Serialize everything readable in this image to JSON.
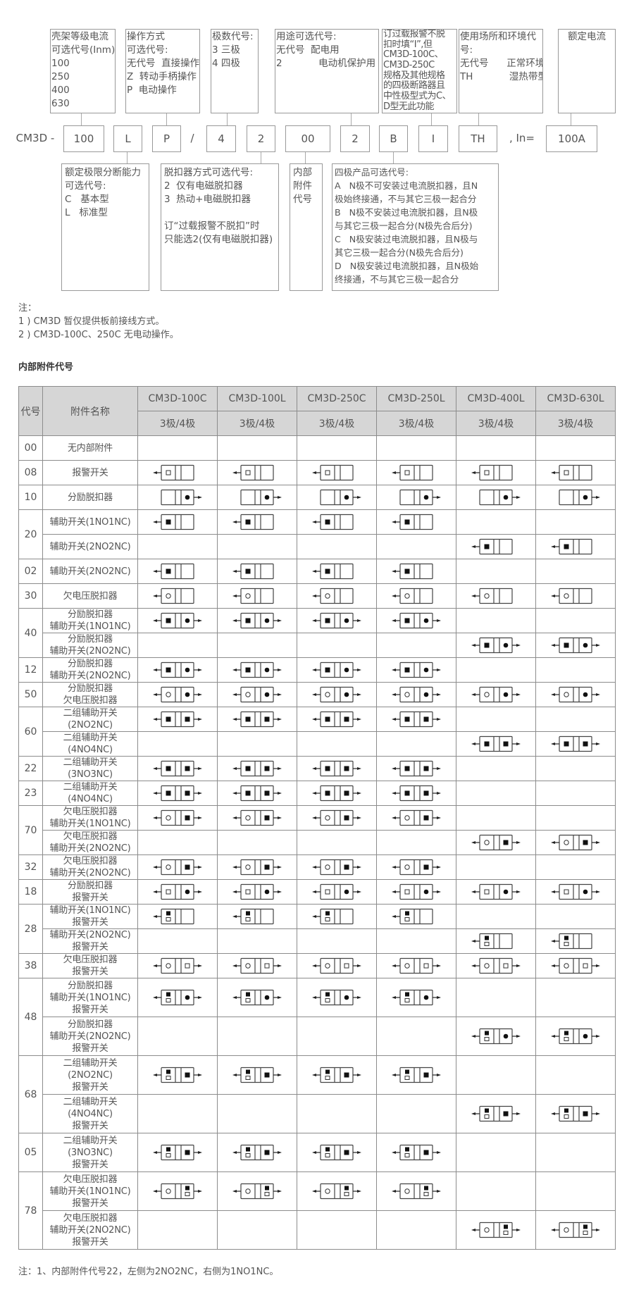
{
  "diagram": {
    "top_boxes": [
      {
        "lines": [
          "壳架等级电流",
          "可选代号(Inm):",
          "100",
          "250",
          "400",
          "630"
        ]
      },
      {
        "lines": [
          "操作方式",
          "可选代号:",
          "无代号  直接操作",
          "Z  转动手柄操作",
          "P  电动操作"
        ]
      },
      {
        "lines": [
          "极数代号:",
          "3 三极",
          "4 四极"
        ]
      },
      {
        "lines": [
          "用途可选代号:",
          "无代号  配电用",
          "2            电动机保护用"
        ]
      },
      {
        "lines": [
          "订过载报警不脱",
          "扣时填“I”,但",
          "CM3D-100C、",
          "CM3D-250C",
          "规格及其他规格",
          "的四极断路器且",
          "中性极型式为C、",
          "D型无此功能"
        ]
      },
      {
        "lines": [
          "使用场所和环境代",
          "号:",
          "无代号      正常环境",
          "TH            湿热带型"
        ]
      },
      {
        "lines": [
          "额定电流"
        ]
      }
    ],
    "code_row": {
      "prefix": "CM3D -",
      "frame_current": "100",
      "breaking_capacity": "L",
      "operation": "P",
      "slash": "/",
      "poles": "4",
      "release_type": "2",
      "accessory": "00",
      "usage": "2",
      "four_pole_type": "B",
      "alarm": "I",
      "environment": "TH",
      "in_label": ", In=",
      "rated_current": "100A"
    },
    "bottom_boxes": [
      {
        "lines": [
          "额定极限分断能力",
          "可选代号:",
          "C   基本型",
          "L   标准型"
        ]
      },
      {
        "lines": [
          "脱扣器方式可选代号:",
          "2  仅有电磁脱扣器",
          "3  热动+电磁脱扣器",
          "",
          "订“过载报警不脱扣”时",
          "只能选2(仅有电磁脱扣器)"
        ]
      },
      {
        "lines": [
          "内部",
          "附件",
          "代号"
        ]
      },
      {
        "lines": [
          "四极产品可选代号:",
          "A   N极不可安装过电流脱扣器，且N",
          "极始终接通，不与其它三极一起合分",
          "B   N极不安装过电流脱扣器，且N极",
          "与其它三极一起合分(N极先合后分)",
          "C   N极安装过电流脱扣器，且N极与",
          "其它三极一起合分(N极先合后分)",
          "D   N极安装过电流脱扣器，且N极始",
          "终接通，不与其它三极一起合分"
        ]
      }
    ]
  },
  "notes": [
    "注：",
    "1 ) CM3D 暂仅提供板前接线方式。",
    "2 ) CM3D-100C、250C 无电动操作。"
  ],
  "section_title": "内部附件代号",
  "table": {
    "header": {
      "code": "代号",
      "name": "附件名称",
      "models": [
        "CM3D-100C",
        "CM3D-100L",
        "CM3D-250C",
        "CM3D-250L",
        "CM3D-400L",
        "CM3D-630L"
      ],
      "poles": [
        "3极/4极",
        "3极/4极",
        "3极/4极",
        "3极/4极",
        "3极/4极",
        "3极/4极"
      ]
    },
    "symbol_legend": {
      "A": "alarm-contact-hollow-square",
      "X": "auxiliary-contact-filled-square",
      "S": "shunt-release-filled-dot",
      "U": "undervoltage-release-hollow-circle",
      "XA": "auxiliary-over-alarm-stacked"
    },
    "groups": [
      {
        "code": "00",
        "rows": [
          {
            "name": [
              "无内部附件"
            ],
            "cells": [
              "",
              "",
              "",
              "",
              "",
              ""
            ]
          }
        ]
      },
      {
        "code": "08",
        "rows": [
          {
            "name": [
              "报警开关"
            ],
            "cells": [
              "A|",
              "A|",
              "A|",
              "A|",
              "A|",
              "A|"
            ]
          }
        ]
      },
      {
        "code": "10",
        "rows": [
          {
            "name": [
              "分励脱扣器"
            ],
            "cells": [
              "|S",
              "|S",
              "|S",
              "|S",
              "|S",
              "|S"
            ]
          }
        ]
      },
      {
        "code": "20",
        "rows": [
          {
            "name": [
              "辅助开关(1NO1NC)"
            ],
            "cells": [
              "X|",
              "X|",
              "X|",
              "X|",
              "",
              ""
            ]
          },
          {
            "name": [
              "辅助开关(2NO2NC)"
            ],
            "cells": [
              "",
              "",
              "",
              "",
              "X|",
              "X|"
            ]
          }
        ]
      },
      {
        "code": "02",
        "rows": [
          {
            "name": [
              "辅助开关(2NO2NC)"
            ],
            "cells": [
              "X|",
              "X|",
              "X|",
              "X|",
              "",
              ""
            ]
          }
        ]
      },
      {
        "code": "30",
        "rows": [
          {
            "name": [
              "欠电压脱扣器"
            ],
            "cells": [
              "U|",
              "U|",
              "U|",
              "U|",
              "U|",
              "U|"
            ]
          }
        ]
      },
      {
        "code": "40",
        "rows": [
          {
            "name": [
              "分励脱扣器",
              "辅助开关(1NO1NC)"
            ],
            "cells": [
              "X|S",
              "X|S",
              "X|S",
              "X|S",
              "",
              ""
            ]
          },
          {
            "name": [
              "分励脱扣器",
              "辅助开关(2NO2NC)"
            ],
            "cells": [
              "",
              "",
              "",
              "",
              "X|S",
              "X|S"
            ]
          }
        ]
      },
      {
        "code": "12",
        "rows": [
          {
            "name": [
              "分励脱扣器",
              "辅助开关(2NO2NC)"
            ],
            "cells": [
              "X|S",
              "X|S",
              "X|S",
              "X|S",
              "",
              ""
            ]
          }
        ]
      },
      {
        "code": "50",
        "rows": [
          {
            "name": [
              "分励脱扣器",
              "欠电压脱扣器"
            ],
            "cells": [
              "U|S",
              "U|S",
              "U|S",
              "U|S",
              "U|S",
              "U|S"
            ]
          }
        ]
      },
      {
        "code": "60",
        "rows": [
          {
            "name": [
              "二组辅助开关",
              "(2NO2NC)"
            ],
            "cells": [
              "X|X",
              "X|X",
              "X|X",
              "X|X",
              "",
              ""
            ]
          },
          {
            "name": [
              "二组辅助开关",
              "(4NO4NC)"
            ],
            "cells": [
              "",
              "",
              "",
              "",
              "X|X",
              "X|X"
            ]
          }
        ]
      },
      {
        "code": "22",
        "rows": [
          {
            "name": [
              "二组辅助开关",
              "(3NO3NC)"
            ],
            "cells": [
              "X|X",
              "X|X",
              "X|X",
              "X|X",
              "",
              ""
            ]
          }
        ]
      },
      {
        "code": "23",
        "rows": [
          {
            "name": [
              "二组辅助开关",
              "(4NO4NC)"
            ],
            "cells": [
              "X|X",
              "X|X",
              "X|X",
              "X|X",
              "",
              ""
            ]
          }
        ]
      },
      {
        "code": "70",
        "rows": [
          {
            "name": [
              "欠电压脱扣器",
              "辅助开关(1NO1NC)"
            ],
            "cells": [
              "U|X",
              "U|X",
              "U|X",
              "U|X",
              "",
              ""
            ]
          },
          {
            "name": [
              "欠电压脱扣器",
              "辅助开关(2NO2NC)"
            ],
            "cells": [
              "",
              "",
              "",
              "",
              "U|X",
              "U|X"
            ]
          }
        ]
      },
      {
        "code": "32",
        "rows": [
          {
            "name": [
              "欠电压脱扣器",
              "辅助开关(2NO2NC)"
            ],
            "cells": [
              "U|X",
              "U|X",
              "U|X",
              "U|X",
              "",
              ""
            ]
          }
        ]
      },
      {
        "code": "18",
        "rows": [
          {
            "name": [
              "分励脱扣器",
              "报警开关"
            ],
            "cells": [
              "A|S",
              "A|S",
              "A|S",
              "A|S",
              "A|S",
              "A|S"
            ]
          }
        ]
      },
      {
        "code": "28",
        "rows": [
          {
            "name": [
              "辅助开关(1NO1NC)",
              "报警开关"
            ],
            "cells": [
              "XA|",
              "XA|",
              "XA|",
              "XA|",
              "",
              ""
            ]
          },
          {
            "name": [
              "辅助开关(2NO2NC)",
              "报警开关"
            ],
            "cells": [
              "",
              "",
              "",
              "",
              "XA|",
              "XA|"
            ]
          }
        ]
      },
      {
        "code": "38",
        "rows": [
          {
            "name": [
              "欠电压脱扣器",
              "报警开关"
            ],
            "cells": [
              "U|A",
              "U|A",
              "U|A",
              "U|A",
              "U|A",
              "U|A"
            ]
          }
        ]
      },
      {
        "code": "48",
        "rows": [
          {
            "name": [
              "分励脱扣器",
              "辅助开关(1NO1NC)",
              "报警开关"
            ],
            "cells": [
              "XA|S",
              "XA|S",
              "XA|S",
              "XA|S",
              "",
              ""
            ]
          },
          {
            "name": [
              "分励脱扣器",
              "辅助开关(2NO2NC)",
              "报警开关"
            ],
            "cells": [
              "",
              "",
              "",
              "",
              "XA|S",
              "XA|S"
            ]
          }
        ]
      },
      {
        "code": "68",
        "rows": [
          {
            "name": [
              "二组辅助开关",
              "(2NO2NC)",
              "报警开关"
            ],
            "cells": [
              "XA|X",
              "XA|X",
              "XA|X",
              "XA|X",
              "",
              ""
            ]
          },
          {
            "name": [
              "二组辅助开关",
              "(4NO4NC)",
              "报警开关"
            ],
            "cells": [
              "",
              "",
              "",
              "",
              "XA|X",
              "XA|X"
            ]
          }
        ]
      },
      {
        "code": "05",
        "rows": [
          {
            "name": [
              "二组辅助开关",
              "(3NO3NC)",
              "报警开关"
            ],
            "cells": [
              "XA|X",
              "XA|X",
              "XA|X",
              "XA|X",
              "",
              ""
            ]
          }
        ]
      },
      {
        "code": "78",
        "rows": [
          {
            "name": [
              "欠电压脱扣器",
              "辅助开关(1NO1NC)",
              "报警开关"
            ],
            "cells": [
              "U|XA",
              "U|XA",
              "U|XA",
              "U|XA",
              "",
              ""
            ]
          },
          {
            "name": [
              "欠电压脱扣器",
              "辅助开关(2NO2NC)",
              "报警开关"
            ],
            "cells": [
              "",
              "",
              "",
              "",
              "U|XA",
              "U|XA"
            ]
          }
        ]
      }
    ]
  },
  "footer_note": "注：1、内部附件代号22，左侧为2NO2NC，右侧为1NO1NC。"
}
